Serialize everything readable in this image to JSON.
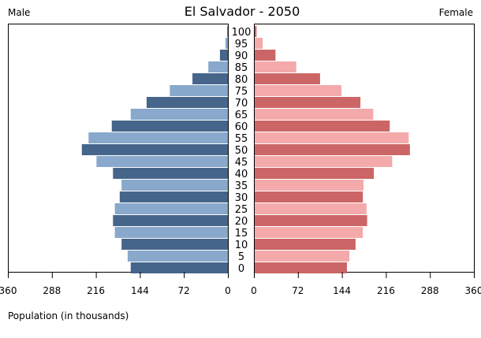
{
  "chart_data": {
    "type": "bar",
    "title": "El Salvador - 2050",
    "left_label": "Male",
    "right_label": "Female",
    "xlabel": "Population (in thousands)",
    "xlim": [
      0,
      360
    ],
    "ticks": [
      360,
      288,
      216,
      144,
      72,
      0
    ],
    "right_ticks": [
      0,
      72,
      144,
      216,
      288,
      360
    ],
    "categories": [
      "0",
      "5",
      "10",
      "15",
      "20",
      "25",
      "30",
      "35",
      "40",
      "45",
      "50",
      "55",
      "60",
      "65",
      "70",
      "75",
      "80",
      "85",
      "90",
      "95",
      "100"
    ],
    "series": [
      {
        "name": "Male",
        "values": [
          159,
          164,
          174,
          185,
          188,
          185,
          177,
          174,
          188,
          215,
          239,
          228,
          190,
          159,
          133,
          95,
          58,
          32,
          13,
          4,
          1
        ]
      },
      {
        "name": "Female",
        "values": [
          151,
          155,
          165,
          177,
          184,
          183,
          177,
          178,
          195,
          225,
          254,
          252,
          221,
          194,
          173,
          142,
          107,
          68,
          34,
          13,
          3
        ]
      }
    ],
    "colors": {
      "male_dark": "#46658a",
      "male_light": "#88a8cc",
      "female_dark": "#cc6666",
      "female_light": "#f4aaaa"
    }
  }
}
